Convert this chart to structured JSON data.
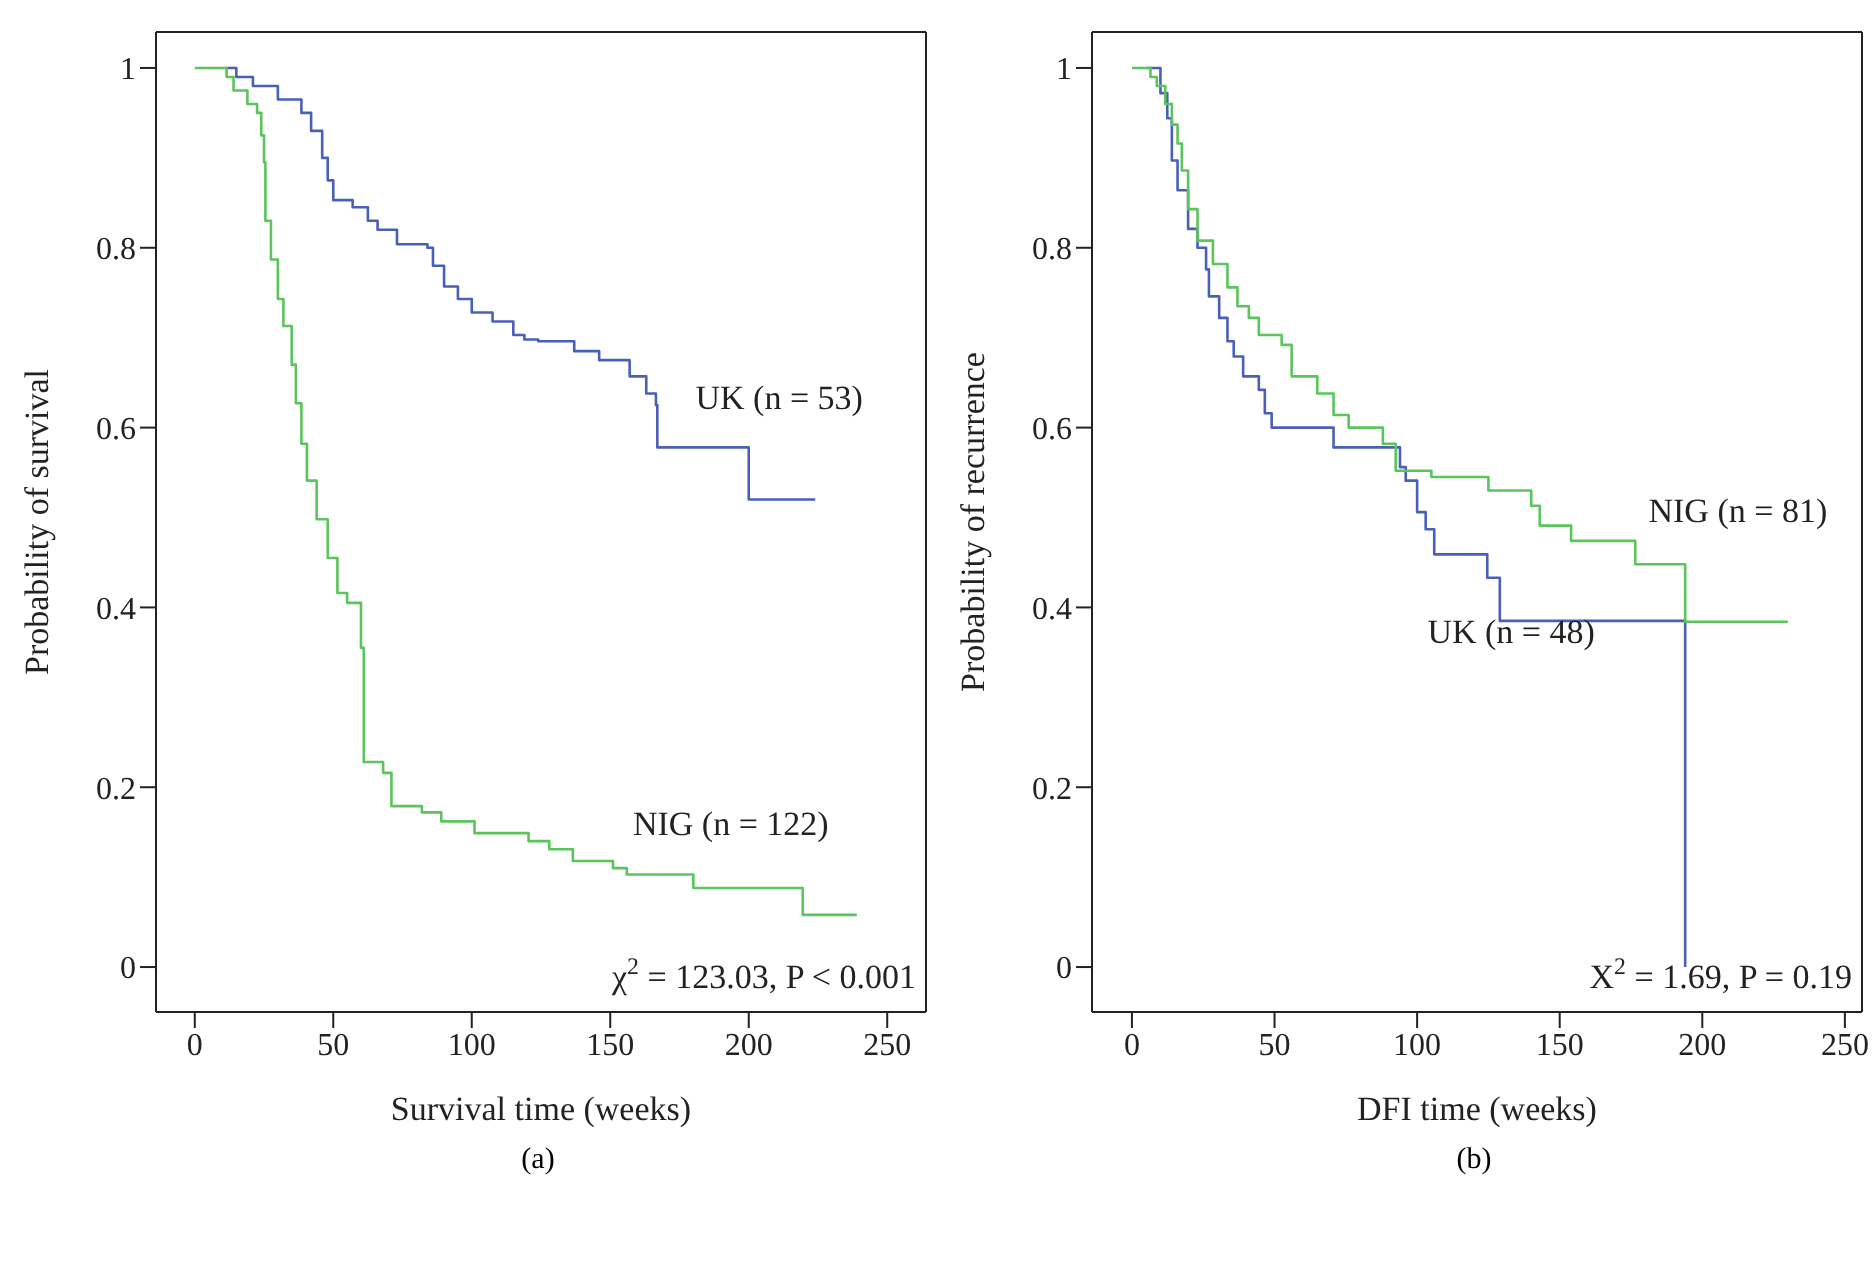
{
  "chart_data": [
    {
      "type": "step",
      "title": "(a)",
      "xlabel": "Survival time (weeks)",
      "ylabel": "Probability of survival",
      "xlim": [
        -14,
        264
      ],
      "ylim": [
        -0.05,
        1.04
      ],
      "xticks": [
        0,
        50,
        100,
        150,
        200,
        250
      ],
      "yticks": [
        0,
        0.2,
        0.4,
        0.6,
        0.8,
        1
      ],
      "annotations": [
        "χ$^{2}$ = 123.03, P < 0.001"
      ],
      "series": [
        {
          "name": "UK (n = 53)",
          "color": "#4a5fb8",
          "x": [
            11,
            15,
            21,
            30,
            38.5,
            42,
            46,
            48,
            50,
            57,
            62.5,
            66,
            73,
            84,
            86,
            90,
            95,
            100,
            107.5,
            115,
            119,
            124,
            137,
            146,
            157,
            163,
            166.5,
            167,
            200,
            224
          ],
          "values": [
            1,
            0.99,
            0.98,
            0.965,
            0.95,
            0.93,
            0.9,
            0.875,
            0.853,
            0.845,
            0.83,
            0.82,
            0.804,
            0.8,
            0.78,
            0.757,
            0.743,
            0.728,
            0.718,
            0.703,
            0.698,
            0.696,
            0.685,
            0.675,
            0.657,
            0.638,
            0.625,
            0.578,
            0.52,
            0.52
          ]
        },
        {
          "name": "NIG (n = 122)",
          "color": "#5cc45c",
          "x": [
            0,
            11.5,
            14,
            19,
            22.5,
            24,
            25,
            25.5,
            27.5,
            30,
            32,
            35,
            36.5,
            38.5,
            40.5,
            44,
            48,
            51.5,
            55,
            60,
            61,
            68,
            71,
            82,
            89,
            101,
            120.5,
            128,
            136.5,
            151,
            156,
            180,
            219.5,
            239
          ],
          "values": [
            1,
            0.99,
            0.975,
            0.96,
            0.95,
            0.925,
            0.895,
            0.83,
            0.787,
            0.743,
            0.713,
            0.67,
            0.627,
            0.582,
            0.541,
            0.498,
            0.455,
            0.416,
            0.405,
            0.355,
            0.228,
            0.216,
            0.179,
            0.172,
            0.162,
            0.149,
            0.14,
            0.131,
            0.118,
            0.11,
            0.103,
            0.088,
            0.058,
            0.058
          ]
        }
      ]
    },
    {
      "type": "step",
      "title": "(b)",
      "xlabel": "DFI time (weeks)",
      "ylabel": "Probability of recurrence",
      "xlim": [
        -14,
        256
      ],
      "ylim": [
        -0.05,
        1.04
      ],
      "xticks": [
        0,
        50,
        100,
        150,
        200,
        250
      ],
      "yticks": [
        0,
        0.2,
        0.4,
        0.6,
        0.8,
        1
      ],
      "annotations": [
        "X$^{2}$ = 1.69, P = 0.19"
      ],
      "series": [
        {
          "name": "UK (n = 48)",
          "color": "#4a5fb8",
          "x": [
            5,
            10,
            12.4,
            14,
            16,
            19.7,
            23,
            26,
            27,
            30.6,
            33.5,
            35.7,
            39,
            44.5,
            46.6,
            49,
            70.7,
            94,
            96,
            100,
            103,
            106,
            124.6,
            129,
            194
          ],
          "values": [
            1,
            0.972,
            0.944,
            0.897,
            0.864,
            0.821,
            0.8,
            0.776,
            0.746,
            0.722,
            0.696,
            0.679,
            0.657,
            0.642,
            0.616,
            0.6,
            0.578,
            0.556,
            0.541,
            0.506,
            0.487,
            0.459,
            0.433,
            0.385,
            0
          ]
        },
        {
          "name": "NIG (n = 81)",
          "color": "#5cc45c",
          "x": [
            0,
            6.5,
            8.7,
            11.7,
            14,
            16,
            17.5,
            19.7,
            23,
            28.4,
            33.5,
            37,
            41,
            44.5,
            52.5,
            56,
            65,
            70.7,
            76,
            88,
            92.5,
            105,
            125,
            140,
            143,
            154,
            176.5,
            194,
            230
          ],
          "values": [
            1,
            0.99,
            0.98,
            0.96,
            0.937,
            0.916,
            0.886,
            0.843,
            0.808,
            0.782,
            0.756,
            0.735,
            0.722,
            0.703,
            0.692,
            0.657,
            0.638,
            0.614,
            0.6,
            0.582,
            0.552,
            0.545,
            0.53,
            0.513,
            0.491,
            0.474,
            0.448,
            0.384,
            0.384
          ]
        }
      ]
    }
  ]
}
